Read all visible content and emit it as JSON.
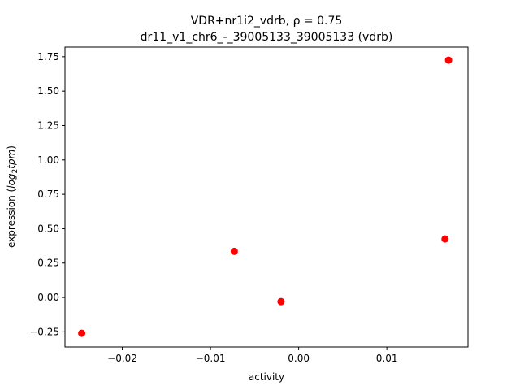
{
  "chart_data": {
    "type": "scatter",
    "title_line1": "VDR+nr1i2_vdrb, ρ = 0.75",
    "title_line2": "dr11_v1_chr6_-_39005133_39005133 (vdrb)",
    "xlabel": "activity",
    "ylabel_prefix": "expression (",
    "ylabel_log": "log",
    "ylabel_sub": "2",
    "ylabel_tpm": "tpm",
    "ylabel_suffix": ")",
    "xlim": [
      -0.0265,
      0.0192
    ],
    "ylim": [
      -0.36,
      1.82
    ],
    "xticks": [
      -0.02,
      -0.01,
      0.0,
      0.01
    ],
    "xtick_labels": [
      "−0.02",
      "−0.01",
      "0.00",
      "0.01"
    ],
    "yticks": [
      -0.25,
      0.0,
      0.25,
      0.5,
      0.75,
      1.0,
      1.25,
      1.5,
      1.75
    ],
    "ytick_labels": [
      "−0.25",
      "0.00",
      "0.25",
      "0.50",
      "0.75",
      "1.00",
      "1.25",
      "1.50",
      "1.75"
    ],
    "marker_color": "#ff0000",
    "points": [
      {
        "x": -0.0246,
        "y": -0.26
      },
      {
        "x": -0.0073,
        "y": 0.335
      },
      {
        "x": -0.002,
        "y": -0.03
      },
      {
        "x": 0.0166,
        "y": 0.425
      },
      {
        "x": 0.017,
        "y": 1.725
      }
    ]
  }
}
